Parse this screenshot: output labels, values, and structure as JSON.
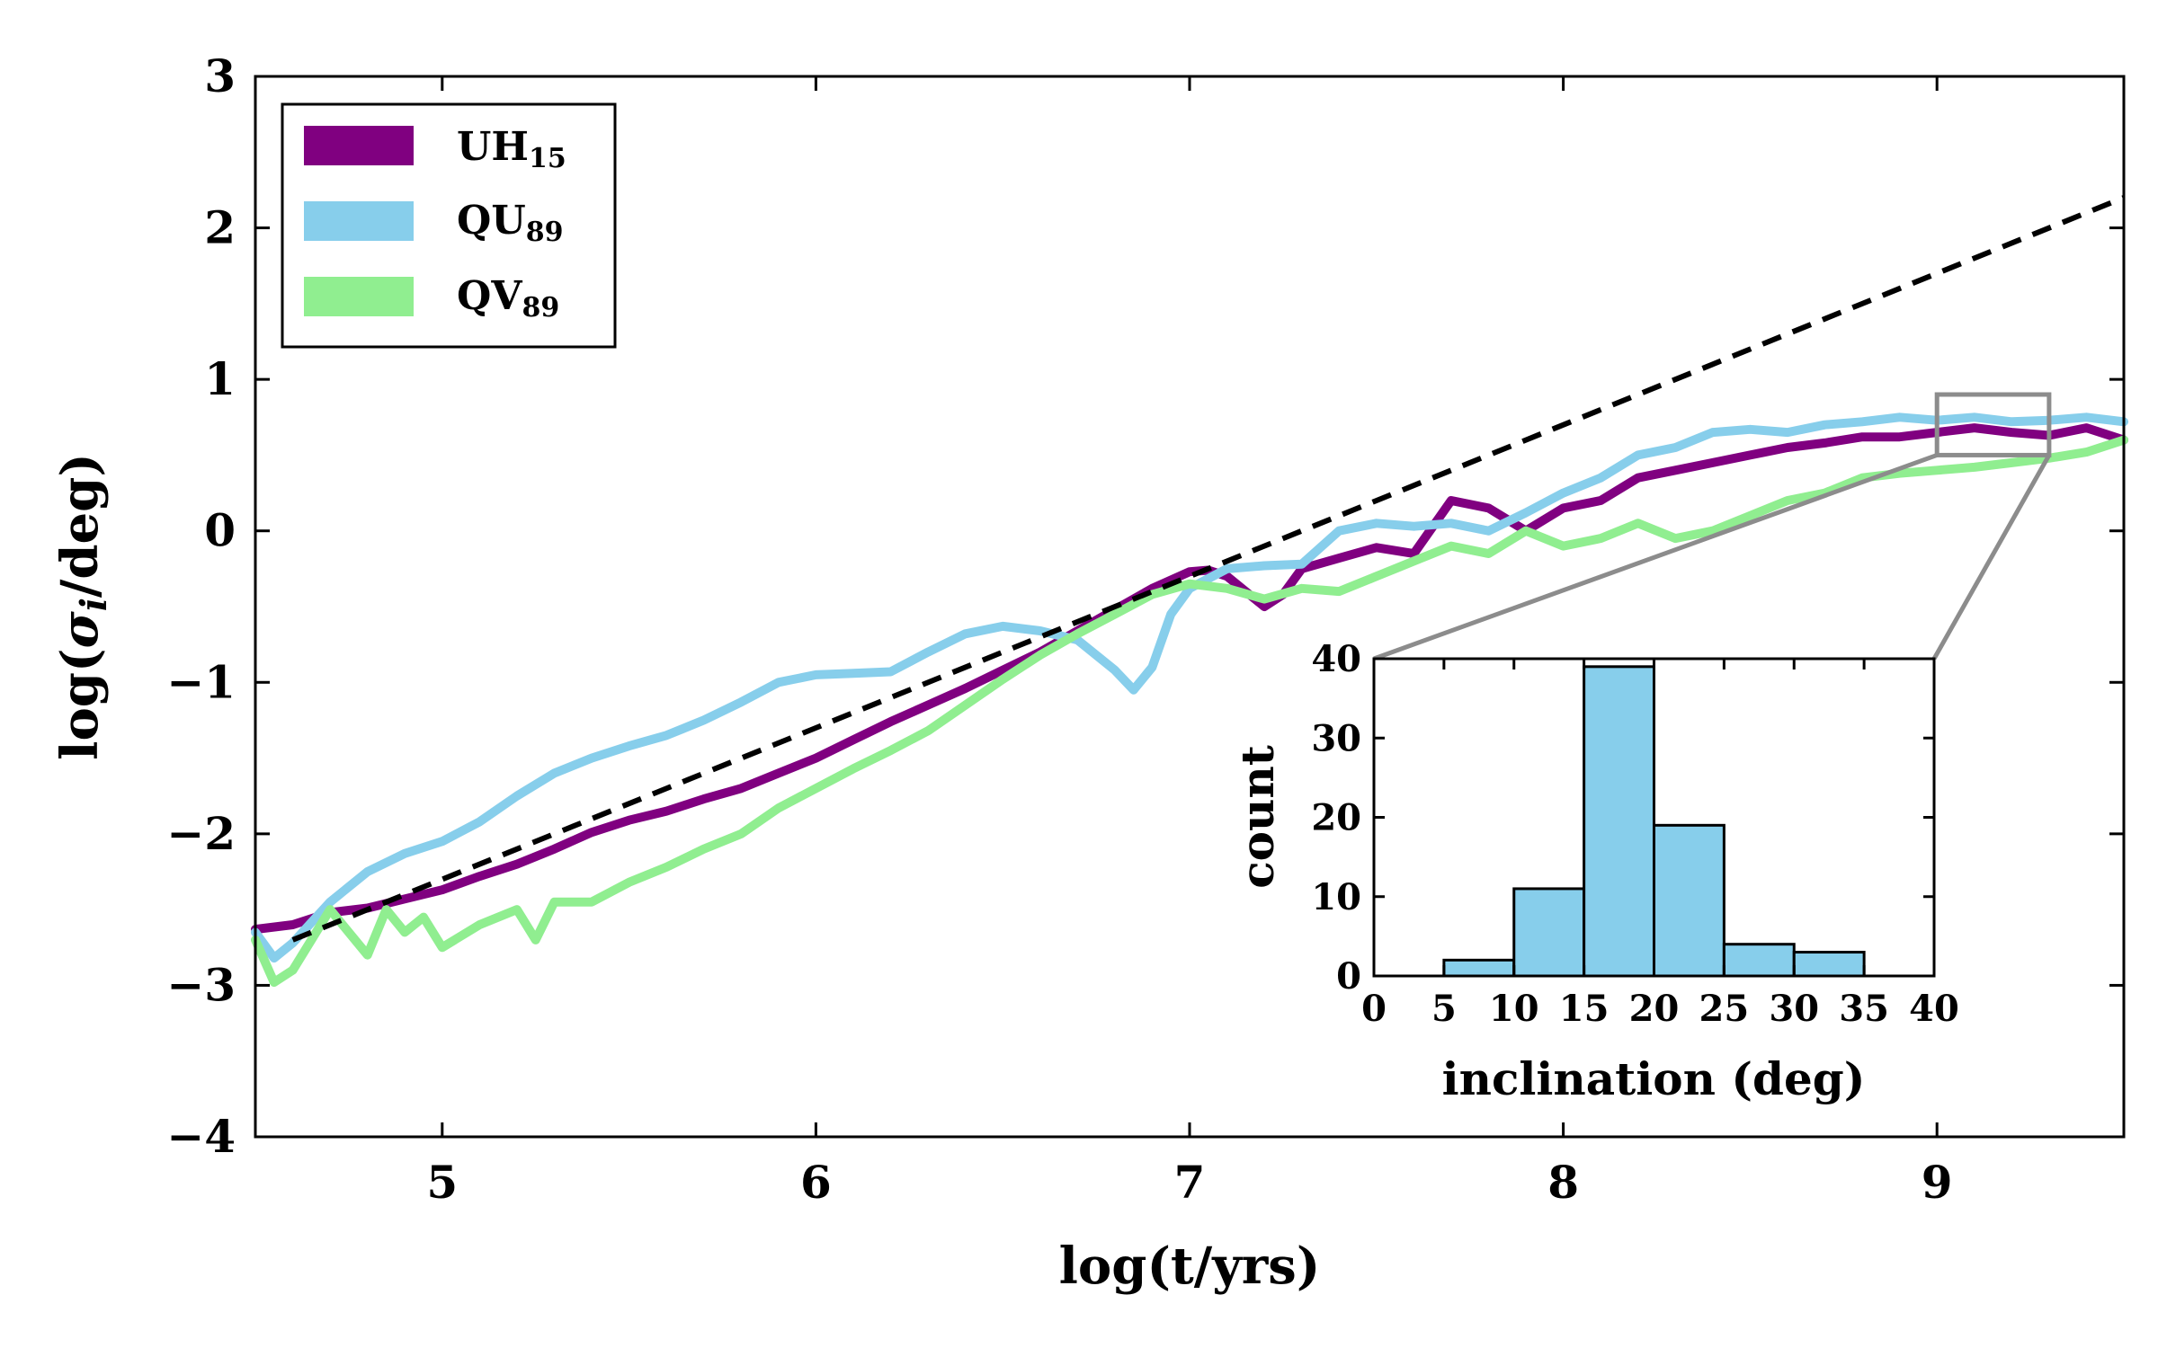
{
  "chart_data": [
    {
      "type": "line",
      "xlabel": "log(t/yrs)",
      "ylabel_prefix": "log(",
      "ylabel_symbol": "σ",
      "ylabel_subscript": "i",
      "ylabel_suffix": "/deg)",
      "xlim": [
        4.5,
        9.5
      ],
      "ylim": [
        -4,
        3
      ],
      "xticks": [
        5,
        6,
        7,
        8,
        9
      ],
      "yticks": [
        3,
        2,
        1,
        0,
        -1,
        -2,
        -3,
        -4
      ],
      "xtick_labels": [
        "5",
        "6",
        "7",
        "8",
        "9"
      ],
      "ytick_labels": [
        "3",
        "2",
        "1",
        "0",
        "−1",
        "−2",
        "−3",
        "−4"
      ],
      "legend": {
        "placement": "top-left"
      },
      "series": [
        {
          "name": "UH",
          "subscript": "15",
          "color": "#800080",
          "x": [
            4.5,
            4.6,
            4.7,
            4.8,
            4.9,
            5.0,
            5.1,
            5.2,
            5.3,
            5.4,
            5.5,
            5.6,
            5.7,
            5.8,
            5.9,
            6.0,
            6.1,
            6.2,
            6.3,
            6.4,
            6.5,
            6.6,
            6.7,
            6.8,
            6.9,
            7.0,
            7.05,
            7.1,
            7.15,
            7.2,
            7.25,
            7.3,
            7.4,
            7.5,
            7.6,
            7.7,
            7.8,
            7.9,
            8.0,
            8.1,
            8.2,
            8.3,
            8.4,
            8.5,
            8.6,
            8.7,
            8.8,
            8.9,
            9.0,
            9.1,
            9.2,
            9.3,
            9.4,
            9.5
          ],
          "y": [
            -2.63,
            -2.6,
            -2.52,
            -2.49,
            -2.43,
            -2.37,
            -2.28,
            -2.2,
            -2.1,
            -1.99,
            -1.91,
            -1.85,
            -1.77,
            -1.7,
            -1.6,
            -1.5,
            -1.38,
            -1.26,
            -1.15,
            -1.04,
            -0.92,
            -0.8,
            -0.66,
            -0.52,
            -0.38,
            -0.27,
            -0.26,
            -0.3,
            -0.4,
            -0.5,
            -0.42,
            -0.25,
            -0.18,
            -0.11,
            -0.15,
            0.2,
            0.15,
            0.0,
            0.15,
            0.2,
            0.35,
            0.4,
            0.45,
            0.5,
            0.55,
            0.58,
            0.62,
            0.62,
            0.65,
            0.68,
            0.65,
            0.63,
            0.68,
            0.6
          ]
        },
        {
          "name": "QU",
          "subscript": "89",
          "color": "#87ceeb",
          "x": [
            4.5,
            4.55,
            4.6,
            4.7,
            4.8,
            4.9,
            5.0,
            5.1,
            5.2,
            5.3,
            5.4,
            5.5,
            5.6,
            5.7,
            5.8,
            5.9,
            6.0,
            6.1,
            6.2,
            6.3,
            6.4,
            6.5,
            6.6,
            6.7,
            6.8,
            6.85,
            6.9,
            6.95,
            7.0,
            7.1,
            7.2,
            7.3,
            7.4,
            7.5,
            7.6,
            7.7,
            7.8,
            7.9,
            8.0,
            8.1,
            8.2,
            8.3,
            8.4,
            8.5,
            8.6,
            8.7,
            8.8,
            8.9,
            9.0,
            9.1,
            9.2,
            9.3,
            9.4,
            9.5
          ],
          "y": [
            -2.65,
            -2.82,
            -2.72,
            -2.45,
            -2.25,
            -2.13,
            -2.05,
            -1.92,
            -1.75,
            -1.6,
            -1.5,
            -1.42,
            -1.35,
            -1.25,
            -1.13,
            -1.0,
            -0.95,
            -0.94,
            -0.93,
            -0.8,
            -0.68,
            -0.63,
            -0.66,
            -0.72,
            -0.92,
            -1.05,
            -0.9,
            -0.55,
            -0.38,
            -0.25,
            -0.23,
            -0.22,
            0.0,
            0.05,
            0.03,
            0.05,
            0.0,
            0.12,
            0.25,
            0.35,
            0.5,
            0.55,
            0.65,
            0.67,
            0.65,
            0.7,
            0.72,
            0.75,
            0.73,
            0.75,
            0.72,
            0.73,
            0.75,
            0.72
          ]
        },
        {
          "name": "QV",
          "subscript": "89",
          "color": "#90ee90",
          "x": [
            4.5,
            4.55,
            4.6,
            4.7,
            4.75,
            4.8,
            4.85,
            4.9,
            4.95,
            5.0,
            5.1,
            5.2,
            5.25,
            5.3,
            5.4,
            5.5,
            5.6,
            5.7,
            5.8,
            5.9,
            6.0,
            6.1,
            6.2,
            6.3,
            6.4,
            6.5,
            6.6,
            6.7,
            6.8,
            6.9,
            7.0,
            7.1,
            7.2,
            7.3,
            7.4,
            7.5,
            7.6,
            7.7,
            7.8,
            7.9,
            8.0,
            8.1,
            8.2,
            8.3,
            8.4,
            8.5,
            8.6,
            8.7,
            8.8,
            8.9,
            9.0,
            9.1,
            9.2,
            9.3,
            9.4,
            9.5
          ],
          "y": [
            -2.7,
            -2.98,
            -2.9,
            -2.5,
            -2.65,
            -2.8,
            -2.5,
            -2.65,
            -2.55,
            -2.75,
            -2.6,
            -2.5,
            -2.7,
            -2.45,
            -2.45,
            -2.32,
            -2.22,
            -2.1,
            -2.0,
            -1.83,
            -1.7,
            -1.57,
            -1.45,
            -1.32,
            -1.15,
            -0.98,
            -0.82,
            -0.68,
            -0.55,
            -0.42,
            -0.35,
            -0.38,
            -0.45,
            -0.38,
            -0.4,
            -0.3,
            -0.2,
            -0.1,
            -0.15,
            0.0,
            -0.1,
            -0.05,
            0.05,
            -0.05,
            0.0,
            0.1,
            0.2,
            0.25,
            0.35,
            0.38,
            0.4,
            0.42,
            0.45,
            0.48,
            0.52,
            0.6
          ]
        },
        {
          "name": "fit",
          "color": "#000000",
          "dashed": true,
          "legend": false,
          "x": [
            4.6,
            9.5
          ],
          "y": [
            -2.7,
            2.2
          ]
        }
      ],
      "zoom_box": {
        "x": [
          9.0,
          9.3
        ],
        "y": [
          0.5,
          0.9
        ]
      }
    },
    {
      "type": "bar",
      "subtype": "histogram",
      "xlabel": "inclination (deg)",
      "ylabel": "count",
      "xlim": [
        0,
        40
      ],
      "ylim": [
        0,
        40
      ],
      "xticks": [
        0,
        5,
        10,
        15,
        20,
        25,
        30,
        35,
        40
      ],
      "yticks": [
        0,
        10,
        20,
        30,
        40
      ],
      "xtick_labels": [
        "0",
        "5",
        "10",
        "15",
        "20",
        "25",
        "30",
        "35",
        "40"
      ],
      "ytick_labels": [
        "0",
        "10",
        "20",
        "30",
        "40"
      ],
      "bin_edges": [
        5,
        10,
        15,
        20,
        25,
        30,
        35
      ],
      "values": [
        2,
        11,
        39,
        19,
        4,
        3
      ],
      "color": "#87ceeb"
    }
  ]
}
